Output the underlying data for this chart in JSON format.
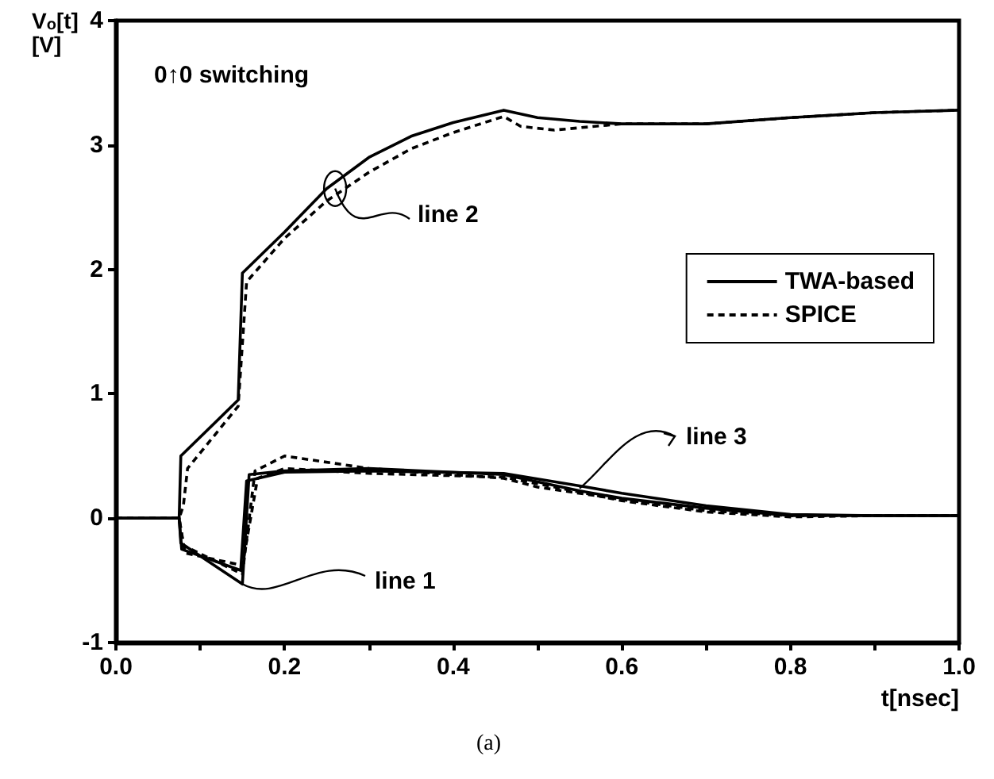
{
  "chart_data": {
    "type": "line",
    "xlabel": "t[nsec]",
    "ylabel": "V$_{o}$[t] [V]",
    "annotations": [
      "0↑0 switching",
      {
        "text": "line 2",
        "x": 0.26,
        "y": 2.65
      },
      {
        "text": "line 3",
        "x": 0.55,
        "y": 0.24
      },
      {
        "text": "line 1",
        "x": 0.15,
        "y": -0.53
      },
      "(a)"
    ],
    "xlim": [
      0,
      1.0
    ],
    "ylim": [
      -1,
      4
    ],
    "xticks": [
      {
        "value": 0,
        "label": "0.0"
      },
      {
        "value": 0.1,
        "label": null
      },
      {
        "value": 0.2,
        "label": "0.2"
      },
      {
        "value": 0.3,
        "label": null
      },
      {
        "value": 0.4,
        "label": "0.4"
      },
      {
        "value": 0.5,
        "label": null
      },
      {
        "value": 0.6,
        "label": "0.6"
      },
      {
        "value": 0.7,
        "label": null
      },
      {
        "value": 0.8,
        "label": "0.8"
      },
      {
        "value": 0.9,
        "label": null
      },
      {
        "value": 1.0,
        "label": "1.0"
      }
    ],
    "yticks": [
      -1,
      0,
      1,
      2,
      3,
      4
    ],
    "grid": false,
    "legend": "right",
    "marker": "none",
    "series": [
      {
        "name": "TWA-based",
        "color": "#000000",
        "line_style": "solid",
        "x": [
          0,
          0.075,
          0.077,
          0.145,
          0.15,
          0.2,
          0.25,
          0.3,
          0.35,
          0.4,
          0.46,
          0.5,
          0.55,
          0.6,
          0.7,
          0.8,
          0.9,
          1.0
        ],
        "values": [
          0,
          0,
          0.5,
          0.95,
          1.97,
          2.3,
          2.65,
          2.9,
          3.07,
          3.18,
          3.28,
          3.22,
          3.19,
          3.17,
          3.17,
          3.22,
          3.26,
          3.28
        ]
      },
      {
        "name": "SPICE",
        "color": "#000000",
        "line_style": "dashed",
        "x": [
          0,
          0.075,
          0.08,
          0.085,
          0.145,
          0.155,
          0.2,
          0.25,
          0.3,
          0.35,
          0.4,
          0.46,
          0.48,
          0.52,
          0.6,
          0.7,
          0.8,
          0.9,
          1.0
        ],
        "values": [
          0,
          0,
          0.1,
          0.4,
          0.9,
          1.9,
          2.25,
          2.55,
          2.78,
          2.97,
          3.1,
          3.23,
          3.15,
          3.12,
          3.17,
          3.17,
          3.22,
          3.26,
          3.28
        ]
      },
      {
        "color": "#000000",
        "line_style": "solid",
        "x": [
          0,
          0.075,
          0.077,
          0.15,
          0.158,
          0.2,
          0.3,
          0.46,
          0.55,
          0.6,
          0.7,
          0.8,
          0.9,
          1.0
        ],
        "values": [
          0,
          0,
          -0.2,
          -0.53,
          0.35,
          0.38,
          0.4,
          0.35,
          0.22,
          0.16,
          0.08,
          0.02,
          0.02,
          0.02
        ]
      },
      {
        "color": "#000000",
        "line_style": "dashed",
        "x": [
          0,
          0.075,
          0.08,
          0.15,
          0.165,
          0.2,
          0.3,
          0.46,
          0.5,
          0.6,
          0.7,
          0.8,
          0.9,
          1.0
        ],
        "values": [
          0,
          0,
          -0.22,
          -0.45,
          0.38,
          0.5,
          0.4,
          0.32,
          0.25,
          0.15,
          0.06,
          0.02,
          0.02,
          0.02
        ]
      },
      {
        "color": "#000000",
        "line_style": "solid",
        "x": [
          0,
          0.075,
          0.078,
          0.148,
          0.155,
          0.2,
          0.3,
          0.46,
          0.55,
          0.6,
          0.7,
          0.8,
          0.9,
          1.0
        ],
        "values": [
          0,
          0,
          -0.25,
          -0.42,
          0.3,
          0.37,
          0.38,
          0.36,
          0.26,
          0.2,
          0.1,
          0.03,
          0.02,
          0.02
        ]
      },
      {
        "color": "#000000",
        "line_style": "dashed",
        "x": [
          0,
          0.075,
          0.082,
          0.15,
          0.168,
          0.2,
          0.3,
          0.46,
          0.55,
          0.6,
          0.7,
          0.8,
          0.9,
          1.0
        ],
        "values": [
          0,
          0,
          -0.28,
          -0.38,
          0.32,
          0.4,
          0.36,
          0.33,
          0.21,
          0.14,
          0.05,
          0.01,
          0.02,
          0.02
        ]
      }
    ]
  }
}
